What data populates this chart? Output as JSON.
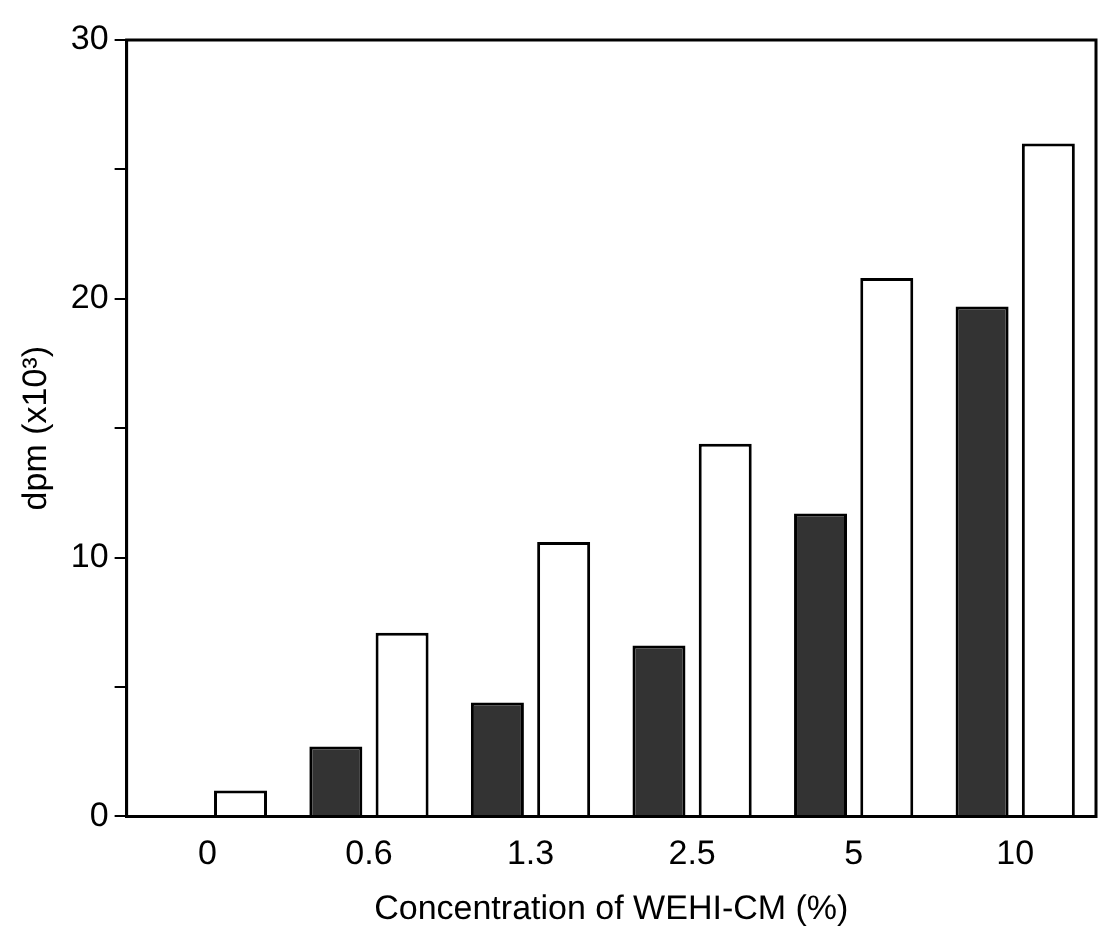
{
  "chart_data": {
    "type": "bar",
    "xlabel": "Concentration of WEHI-CM (%)",
    "ylabel": "dpm (x10³)",
    "categories": [
      "0",
      "0.6",
      "1.3",
      "2.5",
      "5",
      "10"
    ],
    "series": [
      {
        "color": "#333333",
        "values": [
          0,
          2.7,
          4.4,
          6.6,
          11.7,
          19.7
        ]
      },
      {
        "color": "#ffffff",
        "values": [
          1,
          7.1,
          10.6,
          14.4,
          20.8,
          26
        ]
      }
    ],
    "ylim": [
      0,
      30
    ],
    "yticks": [
      0,
      {
        "value": 5,
        "label": null
      },
      10,
      {
        "value": 15,
        "label": null
      },
      20,
      {
        "value": 25,
        "label": null
      },
      30
    ],
    "grid": false,
    "legend": false
  }
}
